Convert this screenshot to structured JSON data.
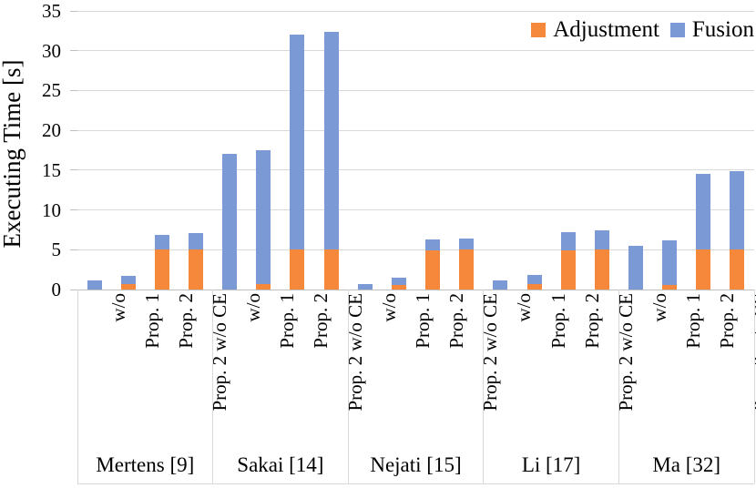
{
  "chart_data": {
    "type": "bar",
    "stacked": true,
    "title": "",
    "ylabel": "Executing Time [s]",
    "xlabel": "",
    "ylim": [
      0,
      35
    ],
    "yticks": [
      0,
      5,
      10,
      15,
      20,
      25,
      30,
      35
    ],
    "grid": true,
    "legend_position": "top-right",
    "groups": [
      "Mertens [9]",
      "Sakai [14]",
      "Nejati [15]",
      "Li [17]",
      "Ma [32]"
    ],
    "bar_categories": [
      "w/o",
      "Prop. 1",
      "Prop. 2",
      "Prop. 2 w/o CE"
    ],
    "series": [
      {
        "name": "Adjustment",
        "color": "#f5883a",
        "values": [
          [
            0,
            0.7,
            5.0,
            5.0
          ],
          [
            0,
            0.7,
            5.0,
            5.0
          ],
          [
            0,
            0.6,
            4.9,
            5.0
          ],
          [
            0,
            0.65,
            4.9,
            5.0
          ],
          [
            0,
            0.6,
            5.0,
            5.0
          ]
        ]
      },
      {
        "name": "Fusion",
        "color": "#7b99d5",
        "values": [
          [
            1.1,
            1.0,
            1.9,
            2.1
          ],
          [
            17.0,
            16.8,
            27.0,
            27.4
          ],
          [
            0.7,
            0.85,
            1.4,
            1.4
          ],
          [
            1.1,
            1.2,
            2.3,
            2.4
          ],
          [
            5.5,
            5.6,
            9.5,
            9.9
          ]
        ]
      }
    ],
    "colors": {
      "gridline": "#d9d9d9",
      "axis": "#bfbfbf",
      "text": "#000000"
    }
  }
}
